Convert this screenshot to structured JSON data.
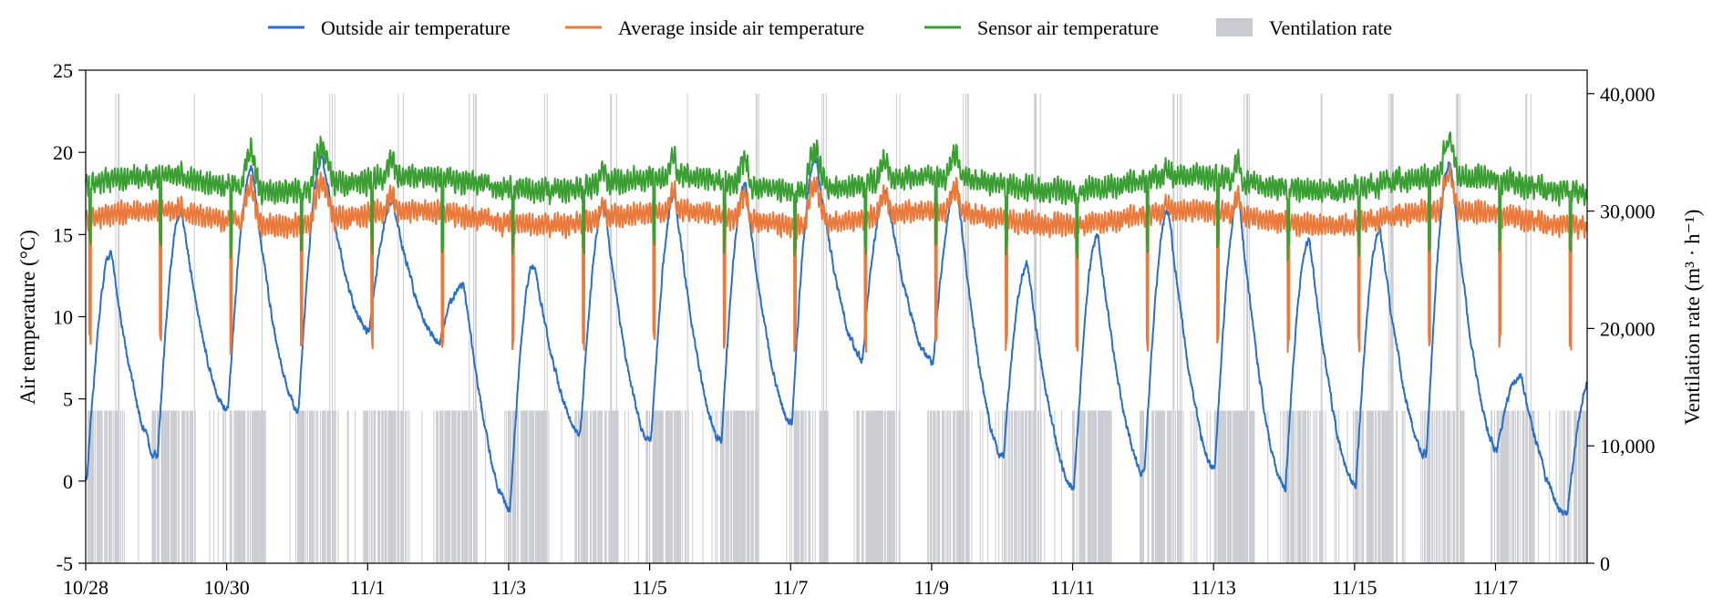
{
  "chart_data": {
    "type": "line",
    "xlabel": "",
    "ylabel": "Air temperature (°C)",
    "y2label": "Ventilation rate (m³ · h⁻¹)",
    "ylim": [
      -5,
      25
    ],
    "y2lim": [
      0,
      42000
    ],
    "xlim_days": [
      0,
      21.3
    ],
    "yticks": [
      -5,
      0,
      5,
      10,
      15,
      20,
      25
    ],
    "y2ticks": [
      0,
      10000,
      20000,
      30000,
      40000
    ],
    "y2tick_labels": [
      "0",
      "10,000",
      "20,000",
      "30,000",
      "40,000"
    ],
    "xtick_labels": [
      "10/28",
      "10/30",
      "11/1",
      "11/3",
      "11/5",
      "11/7",
      "11/9",
      "11/11",
      "11/13",
      "11/15",
      "11/17"
    ],
    "grid": false,
    "legend": "top",
    "colors": {
      "outside": "#2a6fc4",
      "inside": "#ea7a3c",
      "sensor": "#3a9e32",
      "ventilation": "#c9cbd1"
    },
    "series": [
      {
        "name": "Outside air temperature",
        "color": "#2a6fc4",
        "min": [
          0.2,
          1.6,
          4.3,
          4.3,
          9.2,
          8.5,
          -1.6,
          2.9,
          2.4,
          2.5,
          3.5,
          7.5,
          7.2,
          1.5,
          -0.3,
          0.5,
          0.8,
          -0.3,
          -0.3,
          1.6,
          2.0,
          -2.0
        ],
        "max": [
          13.9,
          16.5,
          19.0,
          19.7,
          16.9,
          12.0,
          13.3,
          16.8,
          17.4,
          18.0,
          19.7,
          17.6,
          18.0,
          13.2,
          15.0,
          16.5,
          17.3,
          14.7,
          15.3,
          19.4,
          6.5
        ]
      },
      {
        "name": "Average inside air temperature",
        "color": "#ea7a3c"
      },
      {
        "name": "Sensor air temperature",
        "color": "#3a9e32"
      },
      {
        "name": "Ventilation rate",
        "color": "#c9cbd1",
        "levels": [
          0,
          13000,
          26000,
          40000
        ]
      }
    ]
  }
}
